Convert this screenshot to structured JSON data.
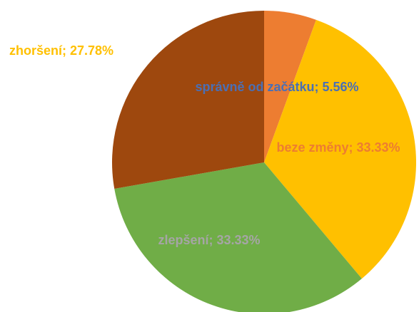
{
  "chart_data": {
    "type": "pie",
    "values": [
      5.56,
      33.33,
      33.33,
      27.78
    ],
    "value_labels": [
      "správně od začátku; 5.56%",
      "beze změny; 33.33%",
      "zlepšení; 33.33%",
      "zhoršení; 27.78%"
    ],
    "colors": [
      "#ed7d31",
      "#ffc000",
      "#70ad47",
      "#9e480e"
    ],
    "label_colors": [
      "#4a6fb5",
      "#ed7d31",
      "#a5a5a5",
      "#ffc000"
    ]
  }
}
